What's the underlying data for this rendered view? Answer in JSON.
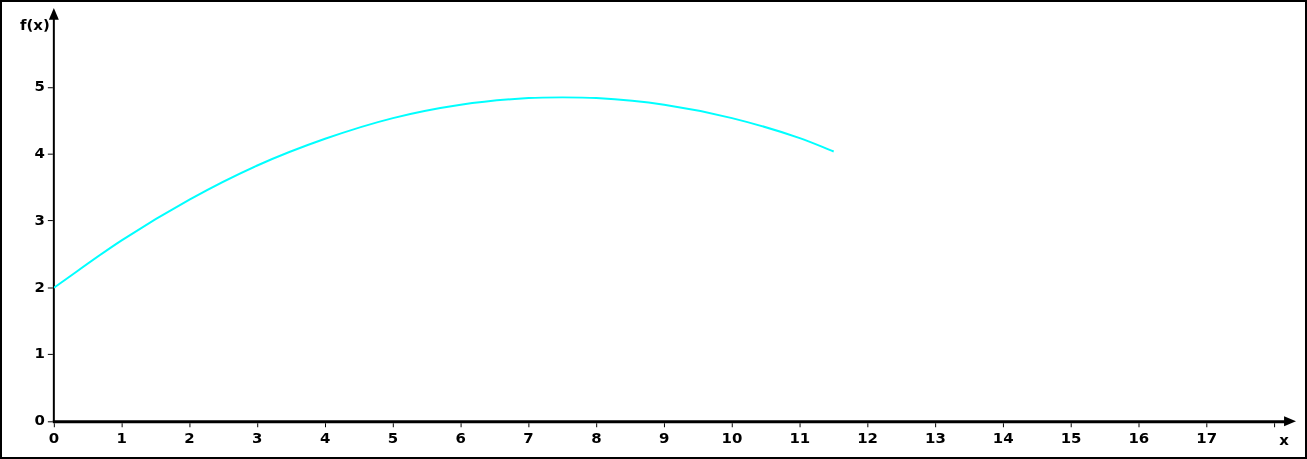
{
  "chart_data": {
    "type": "line",
    "xlabel": "x",
    "ylabel": "f(x)",
    "x": [
      0,
      1,
      2,
      3,
      4,
      5,
      6,
      7,
      7.5,
      8,
      9,
      10,
      11,
      11.5
    ],
    "series": [
      {
        "color": "#00ffff",
        "values": [
          2,
          2.71,
          3.32,
          3.83,
          4.23,
          4.54,
          4.74,
          4.84,
          4.85,
          4.84,
          4.74,
          4.54,
          4.24,
          4.04
        ]
      }
    ],
    "xlim": [
      0,
      18.2
    ],
    "xticks": [
      0,
      1,
      2,
      3,
      4,
      5,
      6,
      7,
      8,
      9,
      10,
      11,
      12,
      13,
      14,
      15,
      16,
      17,
      {
        "value": 18,
        "label": null
      }
    ],
    "ylim": [
      0,
      6.1
    ],
    "yticks": [
      0,
      1,
      2,
      3,
      4,
      5
    ],
    "grid": false,
    "legend": false,
    "marker": "none",
    "line_style": "solid"
  }
}
